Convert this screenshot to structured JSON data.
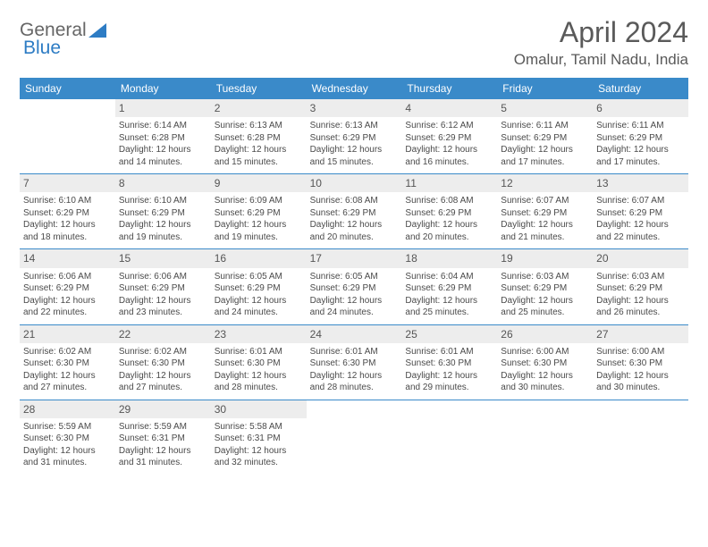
{
  "logo": {
    "text_a": "General",
    "text_b": "Blue"
  },
  "header": {
    "month_title": "April 2024",
    "location": "Omalur, Tamil Nadu, India"
  },
  "colors": {
    "header_bg": "#3a8ac9",
    "header_text": "#ffffff",
    "daynum_bg": "#ededed",
    "divider": "#3a8ac9",
    "body_text": "#4a4a4a",
    "logo_blue": "#2d7cc4"
  },
  "day_names": [
    "Sunday",
    "Monday",
    "Tuesday",
    "Wednesday",
    "Thursday",
    "Friday",
    "Saturday"
  ],
  "weeks": [
    [
      {
        "blank": true
      },
      {
        "n": "1",
        "sr": "6:14 AM",
        "ss": "6:28 PM",
        "dm": "14"
      },
      {
        "n": "2",
        "sr": "6:13 AM",
        "ss": "6:28 PM",
        "dm": "15"
      },
      {
        "n": "3",
        "sr": "6:13 AM",
        "ss": "6:29 PM",
        "dm": "15"
      },
      {
        "n": "4",
        "sr": "6:12 AM",
        "ss": "6:29 PM",
        "dm": "16"
      },
      {
        "n": "5",
        "sr": "6:11 AM",
        "ss": "6:29 PM",
        "dm": "17"
      },
      {
        "n": "6",
        "sr": "6:11 AM",
        "ss": "6:29 PM",
        "dm": "17"
      }
    ],
    [
      {
        "n": "7",
        "sr": "6:10 AM",
        "ss": "6:29 PM",
        "dm": "18"
      },
      {
        "n": "8",
        "sr": "6:10 AM",
        "ss": "6:29 PM",
        "dm": "19"
      },
      {
        "n": "9",
        "sr": "6:09 AM",
        "ss": "6:29 PM",
        "dm": "19"
      },
      {
        "n": "10",
        "sr": "6:08 AM",
        "ss": "6:29 PM",
        "dm": "20"
      },
      {
        "n": "11",
        "sr": "6:08 AM",
        "ss": "6:29 PM",
        "dm": "20"
      },
      {
        "n": "12",
        "sr": "6:07 AM",
        "ss": "6:29 PM",
        "dm": "21"
      },
      {
        "n": "13",
        "sr": "6:07 AM",
        "ss": "6:29 PM",
        "dm": "22"
      }
    ],
    [
      {
        "n": "14",
        "sr": "6:06 AM",
        "ss": "6:29 PM",
        "dm": "22"
      },
      {
        "n": "15",
        "sr": "6:06 AM",
        "ss": "6:29 PM",
        "dm": "23"
      },
      {
        "n": "16",
        "sr": "6:05 AM",
        "ss": "6:29 PM",
        "dm": "24"
      },
      {
        "n": "17",
        "sr": "6:05 AM",
        "ss": "6:29 PM",
        "dm": "24"
      },
      {
        "n": "18",
        "sr": "6:04 AM",
        "ss": "6:29 PM",
        "dm": "25"
      },
      {
        "n": "19",
        "sr": "6:03 AM",
        "ss": "6:29 PM",
        "dm": "25"
      },
      {
        "n": "20",
        "sr": "6:03 AM",
        "ss": "6:29 PM",
        "dm": "26"
      }
    ],
    [
      {
        "n": "21",
        "sr": "6:02 AM",
        "ss": "6:30 PM",
        "dm": "27"
      },
      {
        "n": "22",
        "sr": "6:02 AM",
        "ss": "6:30 PM",
        "dm": "27"
      },
      {
        "n": "23",
        "sr": "6:01 AM",
        "ss": "6:30 PM",
        "dm": "28"
      },
      {
        "n": "24",
        "sr": "6:01 AM",
        "ss": "6:30 PM",
        "dm": "28"
      },
      {
        "n": "25",
        "sr": "6:01 AM",
        "ss": "6:30 PM",
        "dm": "29"
      },
      {
        "n": "26",
        "sr": "6:00 AM",
        "ss": "6:30 PM",
        "dm": "30"
      },
      {
        "n": "27",
        "sr": "6:00 AM",
        "ss": "6:30 PM",
        "dm": "30"
      }
    ],
    [
      {
        "n": "28",
        "sr": "5:59 AM",
        "ss": "6:30 PM",
        "dm": "31"
      },
      {
        "n": "29",
        "sr": "5:59 AM",
        "ss": "6:31 PM",
        "dm": "31"
      },
      {
        "n": "30",
        "sr": "5:58 AM",
        "ss": "6:31 PM",
        "dm": "32"
      },
      {
        "blank": true
      },
      {
        "blank": true
      },
      {
        "blank": true
      },
      {
        "blank": true
      }
    ]
  ],
  "labels": {
    "sunrise": "Sunrise:",
    "sunset": "Sunset:",
    "daylight_prefix": "Daylight: 12 hours and",
    "daylight_suffix": "minutes."
  }
}
